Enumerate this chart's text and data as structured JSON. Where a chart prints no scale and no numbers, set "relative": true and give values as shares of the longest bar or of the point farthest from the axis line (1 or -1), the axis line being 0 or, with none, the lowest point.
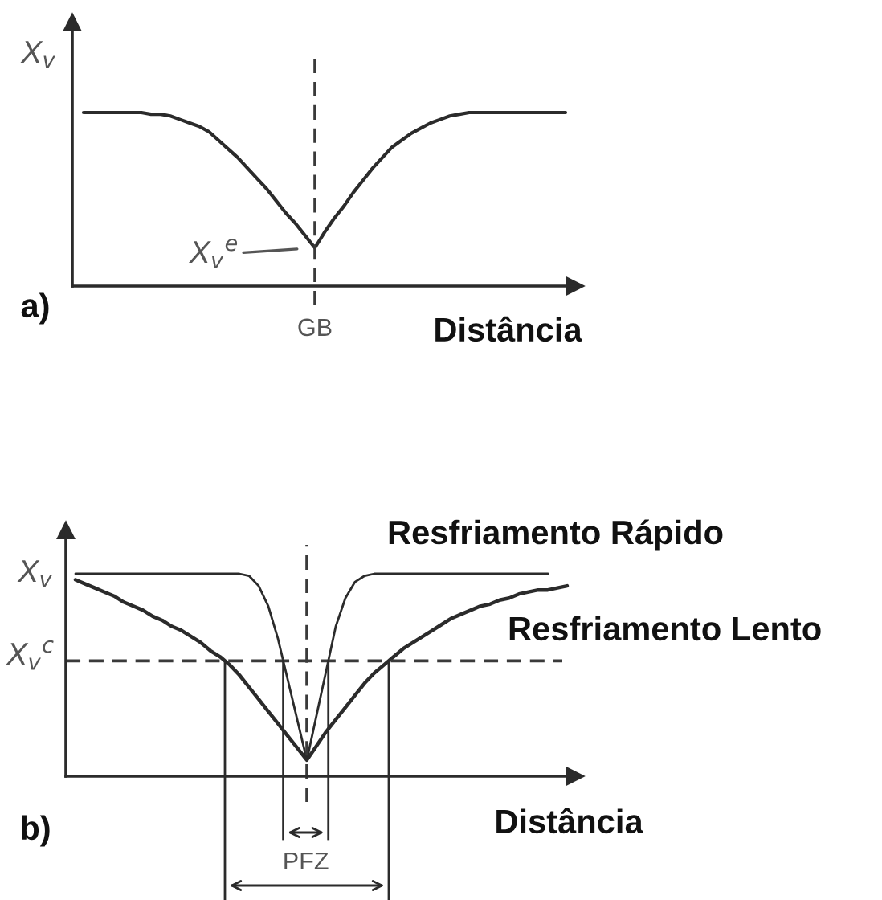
{
  "chart_data": [
    {
      "type": "line",
      "relative": true,
      "xlabel": "Distância",
      "ylabel": "X$_{v}$",
      "categories": [
        null,
        null,
        null,
        null,
        null,
        null,
        null,
        null,
        null,
        null,
        null,
        null,
        null,
        null,
        null,
        null,
        null,
        null,
        null,
        null,
        null,
        null,
        null,
        null,
        null,
        null,
        null,
        null,
        null,
        null,
        null,
        null,
        null,
        null,
        null,
        null,
        null,
        null,
        null,
        null,
        null,
        null,
        null,
        null,
        null,
        null,
        null,
        null,
        null,
        null,
        null
      ],
      "color": "#2b2b2b",
      "values": [
        1,
        1,
        1,
        1,
        1,
        1,
        1,
        0.99,
        0.99,
        0.98,
        0.96,
        0.94,
        0.92,
        0.89,
        0.84,
        0.79,
        0.74,
        0.68,
        0.62,
        0.56,
        0.49,
        0.42,
        0.36,
        0.29,
        0.22,
        0.31,
        0.39,
        0.46,
        0.54,
        0.61,
        0.68,
        0.74,
        0.8,
        0.84,
        0.88,
        0.91,
        0.94,
        0.96,
        0.98,
        0.99,
        1,
        1,
        1,
        1,
        1,
        1,
        1,
        1,
        1,
        1,
        1
      ],
      "annotations": [
        "a)",
        "GB",
        "X$_{v}$$^{e}$"
      ]
    },
    {
      "type": "line",
      "relative": true,
      "xlabel": "Distância",
      "ylabel": "X$_{v}$",
      "categories": [
        null,
        null,
        null,
        null,
        null,
        null,
        null,
        null,
        null,
        null,
        null,
        null,
        null,
        null,
        null,
        null,
        null,
        null,
        null,
        null,
        null,
        null,
        null,
        null,
        null,
        null,
        null,
        null,
        null,
        null,
        null,
        null,
        null,
        null,
        null,
        null,
        null,
        null,
        null,
        null,
        null,
        null,
        null,
        null,
        null,
        null,
        null,
        null,
        null,
        null,
        null,
        null
      ],
      "series": [
        {
          "name": "Resfriamento Rápido",
          "color": "#2b2b2b",
          "values": [
            1,
            1,
            1,
            1,
            1,
            1,
            1,
            1,
            1,
            1,
            1,
            1,
            1,
            1,
            1,
            1,
            1,
            1,
            0.99,
            0.94,
            0.84,
            0.68,
            0.48,
            0.28,
            0.08,
            0.3,
            0.52,
            0.74,
            0.88,
            0.96,
            0.99,
            1,
            1,
            1,
            1,
            1,
            1,
            1,
            1,
            1,
            1,
            1,
            1,
            1,
            1,
            1,
            1,
            1,
            1,
            1,
            null,
            null
          ]
        },
        {
          "name": "Resfriamento Lento",
          "color": "#2b2b2b",
          "values": [
            0.97,
            0.95,
            0.93,
            0.91,
            0.89,
            0.86,
            0.84,
            0.82,
            0.79,
            0.77,
            0.74,
            0.72,
            0.69,
            0.66,
            0.62,
            0.59,
            0.55,
            0.5,
            0.44,
            0.38,
            0.32,
            0.26,
            0.2,
            0.14,
            0.08,
            0.15,
            0.22,
            0.28,
            0.34,
            0.4,
            0.46,
            0.51,
            0.55,
            0.59,
            0.63,
            0.66,
            0.69,
            0.72,
            0.75,
            0.78,
            0.8,
            0.82,
            0.84,
            0.85,
            0.87,
            0.88,
            0.9,
            0.91,
            0.92,
            0.92,
            0.93,
            0.94
          ]
        }
      ],
      "ref_lines": [
        {
          "axis": "y",
          "value": 0.57,
          "label": "X$_{v}$$^{c}$",
          "line_style": "dashed",
          "color": "#3a3a3a"
        }
      ],
      "annotations": [
        "b)",
        "PFZ"
      ]
    }
  ]
}
